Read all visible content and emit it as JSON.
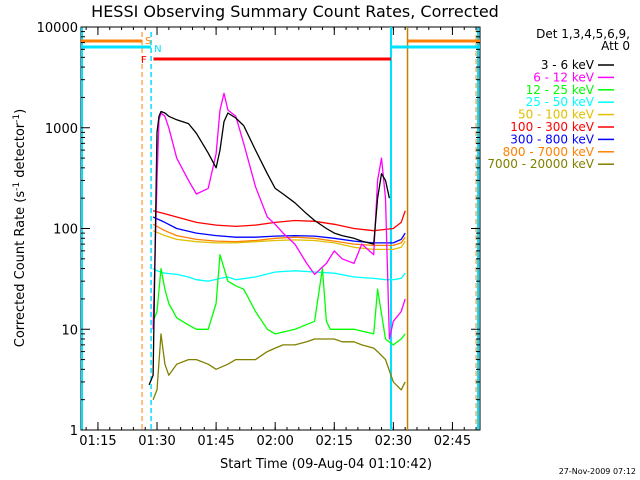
{
  "chart_data": {
    "type": "line",
    "title": "HESSI Observing Summary Count Rates, Corrected",
    "xlabel": "Start Time (09-Aug-04 01:10:42)",
    "ylabel_main": "Corrected Count Rate (s",
    "ylabel_sup": "-1",
    "ylabel_mid": " detector",
    "ylabel_end": ")",
    "yscale": "log",
    "ylim": [
      1,
      10000
    ],
    "xlim_minutes": [
      70.7,
      172.0
    ],
    "x_ticks": [
      {
        "label": "01:15",
        "minutes": 75
      },
      {
        "label": "01:30",
        "minutes": 90
      },
      {
        "label": "01:45",
        "minutes": 105
      },
      {
        "label": "02:00",
        "minutes": 120
      },
      {
        "label": "02:15",
        "minutes": 135
      },
      {
        "label": "02:30",
        "minutes": 150
      },
      {
        "label": "02:45",
        "minutes": 165
      }
    ],
    "y_ticks": [
      {
        "label": "1",
        "value": 1
      },
      {
        "label": "10",
        "value": 10
      },
      {
        "label": "100",
        "value": 100
      },
      {
        "label": "1000",
        "value": 1000
      },
      {
        "label": "10000",
        "value": 10000
      }
    ],
    "legend_header": [
      "Det 1,3,4,5,6,9,",
      "Att 0"
    ],
    "legend_position": "right",
    "footer_date": "27-Nov-2009 07:12",
    "flags": [
      {
        "label": "S",
        "color": "#ff8000"
      },
      {
        "label": "N",
        "color": "#00e0ff"
      },
      {
        "label": "F",
        "color": "#ff0000"
      }
    ],
    "series": [
      {
        "name": "3 - 6 keV",
        "color": "#000000",
        "x": [
          88,
          89,
          90,
          90.5,
          91,
          92,
          93,
          95,
          98,
          100,
          103,
          105,
          106,
          107,
          108,
          110,
          112,
          115,
          118,
          120,
          122,
          125,
          128,
          130,
          133,
          135,
          137,
          140,
          142,
          145,
          146,
          147,
          148,
          149
        ],
        "y": [
          2.8,
          3.5,
          900,
          1300,
          1450,
          1400,
          1300,
          1200,
          1100,
          880,
          560,
          400,
          600,
          1150,
          1400,
          1250,
          1050,
          600,
          350,
          250,
          220,
          180,
          140,
          120,
          100,
          90,
          85,
          80,
          75,
          70,
          200,
          350,
          300,
          200
        ]
      },
      {
        "name": "6 - 12 keV",
        "color": "#ff00ff",
        "x": [
          89,
          90,
          90.5,
          91,
          92,
          93,
          95,
          98,
          100,
          103,
          105,
          106,
          107,
          108,
          110,
          112,
          115,
          118,
          120,
          122,
          125,
          128,
          130,
          133,
          135,
          137,
          140,
          142,
          145,
          146,
          147,
          148,
          149,
          150,
          152,
          153
        ],
        "y": [
          10,
          300,
          1200,
          1400,
          1300,
          1000,
          500,
          300,
          220,
          250,
          550,
          1500,
          2200,
          1500,
          1300,
          700,
          260,
          130,
          110,
          90,
          70,
          45,
          35,
          45,
          60,
          50,
          45,
          70,
          55,
          300,
          500,
          200,
          8,
          12,
          15,
          20
        ]
      },
      {
        "name": "12 - 25 keV",
        "color": "#00ff00",
        "x": [
          89,
          90,
          91,
          92,
          93,
          95,
          98,
          100,
          103,
          105,
          106,
          108,
          110,
          112,
          115,
          118,
          120,
          125,
          130,
          132,
          133,
          134,
          135,
          140,
          145,
          146,
          148,
          150,
          152,
          153
        ],
        "y": [
          12,
          15,
          40,
          25,
          18,
          13,
          11,
          10,
          10,
          18,
          55,
          30,
          27,
          25,
          15,
          10,
          9,
          10,
          12,
          40,
          12,
          10,
          10,
          10,
          9,
          25,
          8,
          7,
          8,
          9
        ]
      },
      {
        "name": "25 - 50 keV",
        "color": "#00ffff",
        "x": [
          89,
          90,
          92,
          95,
          98,
          100,
          103,
          106,
          108,
          110,
          115,
          120,
          125,
          130,
          135,
          140,
          145,
          148,
          150,
          152,
          153
        ],
        "y": [
          40,
          38,
          36,
          35,
          33,
          31,
          30,
          32,
          33,
          31,
          33,
          37,
          38,
          37,
          36,
          33,
          32,
          31,
          31,
          32,
          36
        ]
      },
      {
        "name": "50 - 100 keV",
        "color": "#e0c000",
        "x": [
          89,
          92,
          95,
          100,
          105,
          110,
          115,
          120,
          125,
          130,
          135,
          140,
          145,
          150,
          152,
          153
        ],
        "y": [
          95,
          85,
          78,
          74,
          72,
          72,
          74,
          76,
          77,
          76,
          72,
          65,
          62,
          62,
          65,
          75
        ]
      },
      {
        "name": "100 - 300 keV",
        "color": "#ff0000",
        "x": [
          89,
          92,
          95,
          100,
          105,
          110,
          115,
          120,
          125,
          130,
          135,
          140,
          145,
          150,
          152,
          153
        ],
        "y": [
          150,
          140,
          130,
          115,
          108,
          105,
          108,
          115,
          120,
          118,
          110,
          100,
          95,
          100,
          115,
          150
        ]
      },
      {
        "name": "300 - 800 keV",
        "color": "#0000ff",
        "x": [
          89,
          92,
          95,
          100,
          105,
          110,
          115,
          120,
          125,
          130,
          135,
          140,
          145,
          150,
          152,
          153
        ],
        "y": [
          130,
          115,
          100,
          90,
          85,
          82,
          82,
          84,
          85,
          84,
          80,
          75,
          72,
          72,
          78,
          90
        ]
      },
      {
        "name": "800 - 7000 keV",
        "color": "#ff8000",
        "x": [
          89,
          92,
          95,
          100,
          105,
          110,
          115,
          120,
          125,
          130,
          135,
          140,
          145,
          150,
          152,
          153
        ],
        "y": [
          110,
          95,
          85,
          78,
          75,
          74,
          76,
          80,
          82,
          80,
          75,
          70,
          68,
          68,
          72,
          82
        ]
      },
      {
        "name": "7000 - 20000 keV",
        "color": "#808000",
        "x": [
          89,
          90,
          91,
          92,
          93,
          95,
          98,
          100,
          103,
          105,
          108,
          110,
          112,
          115,
          118,
          120,
          122,
          125,
          128,
          130,
          133,
          135,
          137,
          140,
          142,
          145,
          146,
          148,
          150,
          152,
          153
        ],
        "y": [
          2,
          2.5,
          9,
          4.5,
          3.5,
          4.5,
          5,
          5,
          4.5,
          4,
          4.5,
          5,
          5,
          5,
          6,
          6.5,
          7,
          7,
          7.5,
          8,
          8,
          8,
          7.5,
          7.5,
          7,
          6.5,
          6,
          5,
          3,
          2.5,
          3
        ]
      }
    ]
  }
}
